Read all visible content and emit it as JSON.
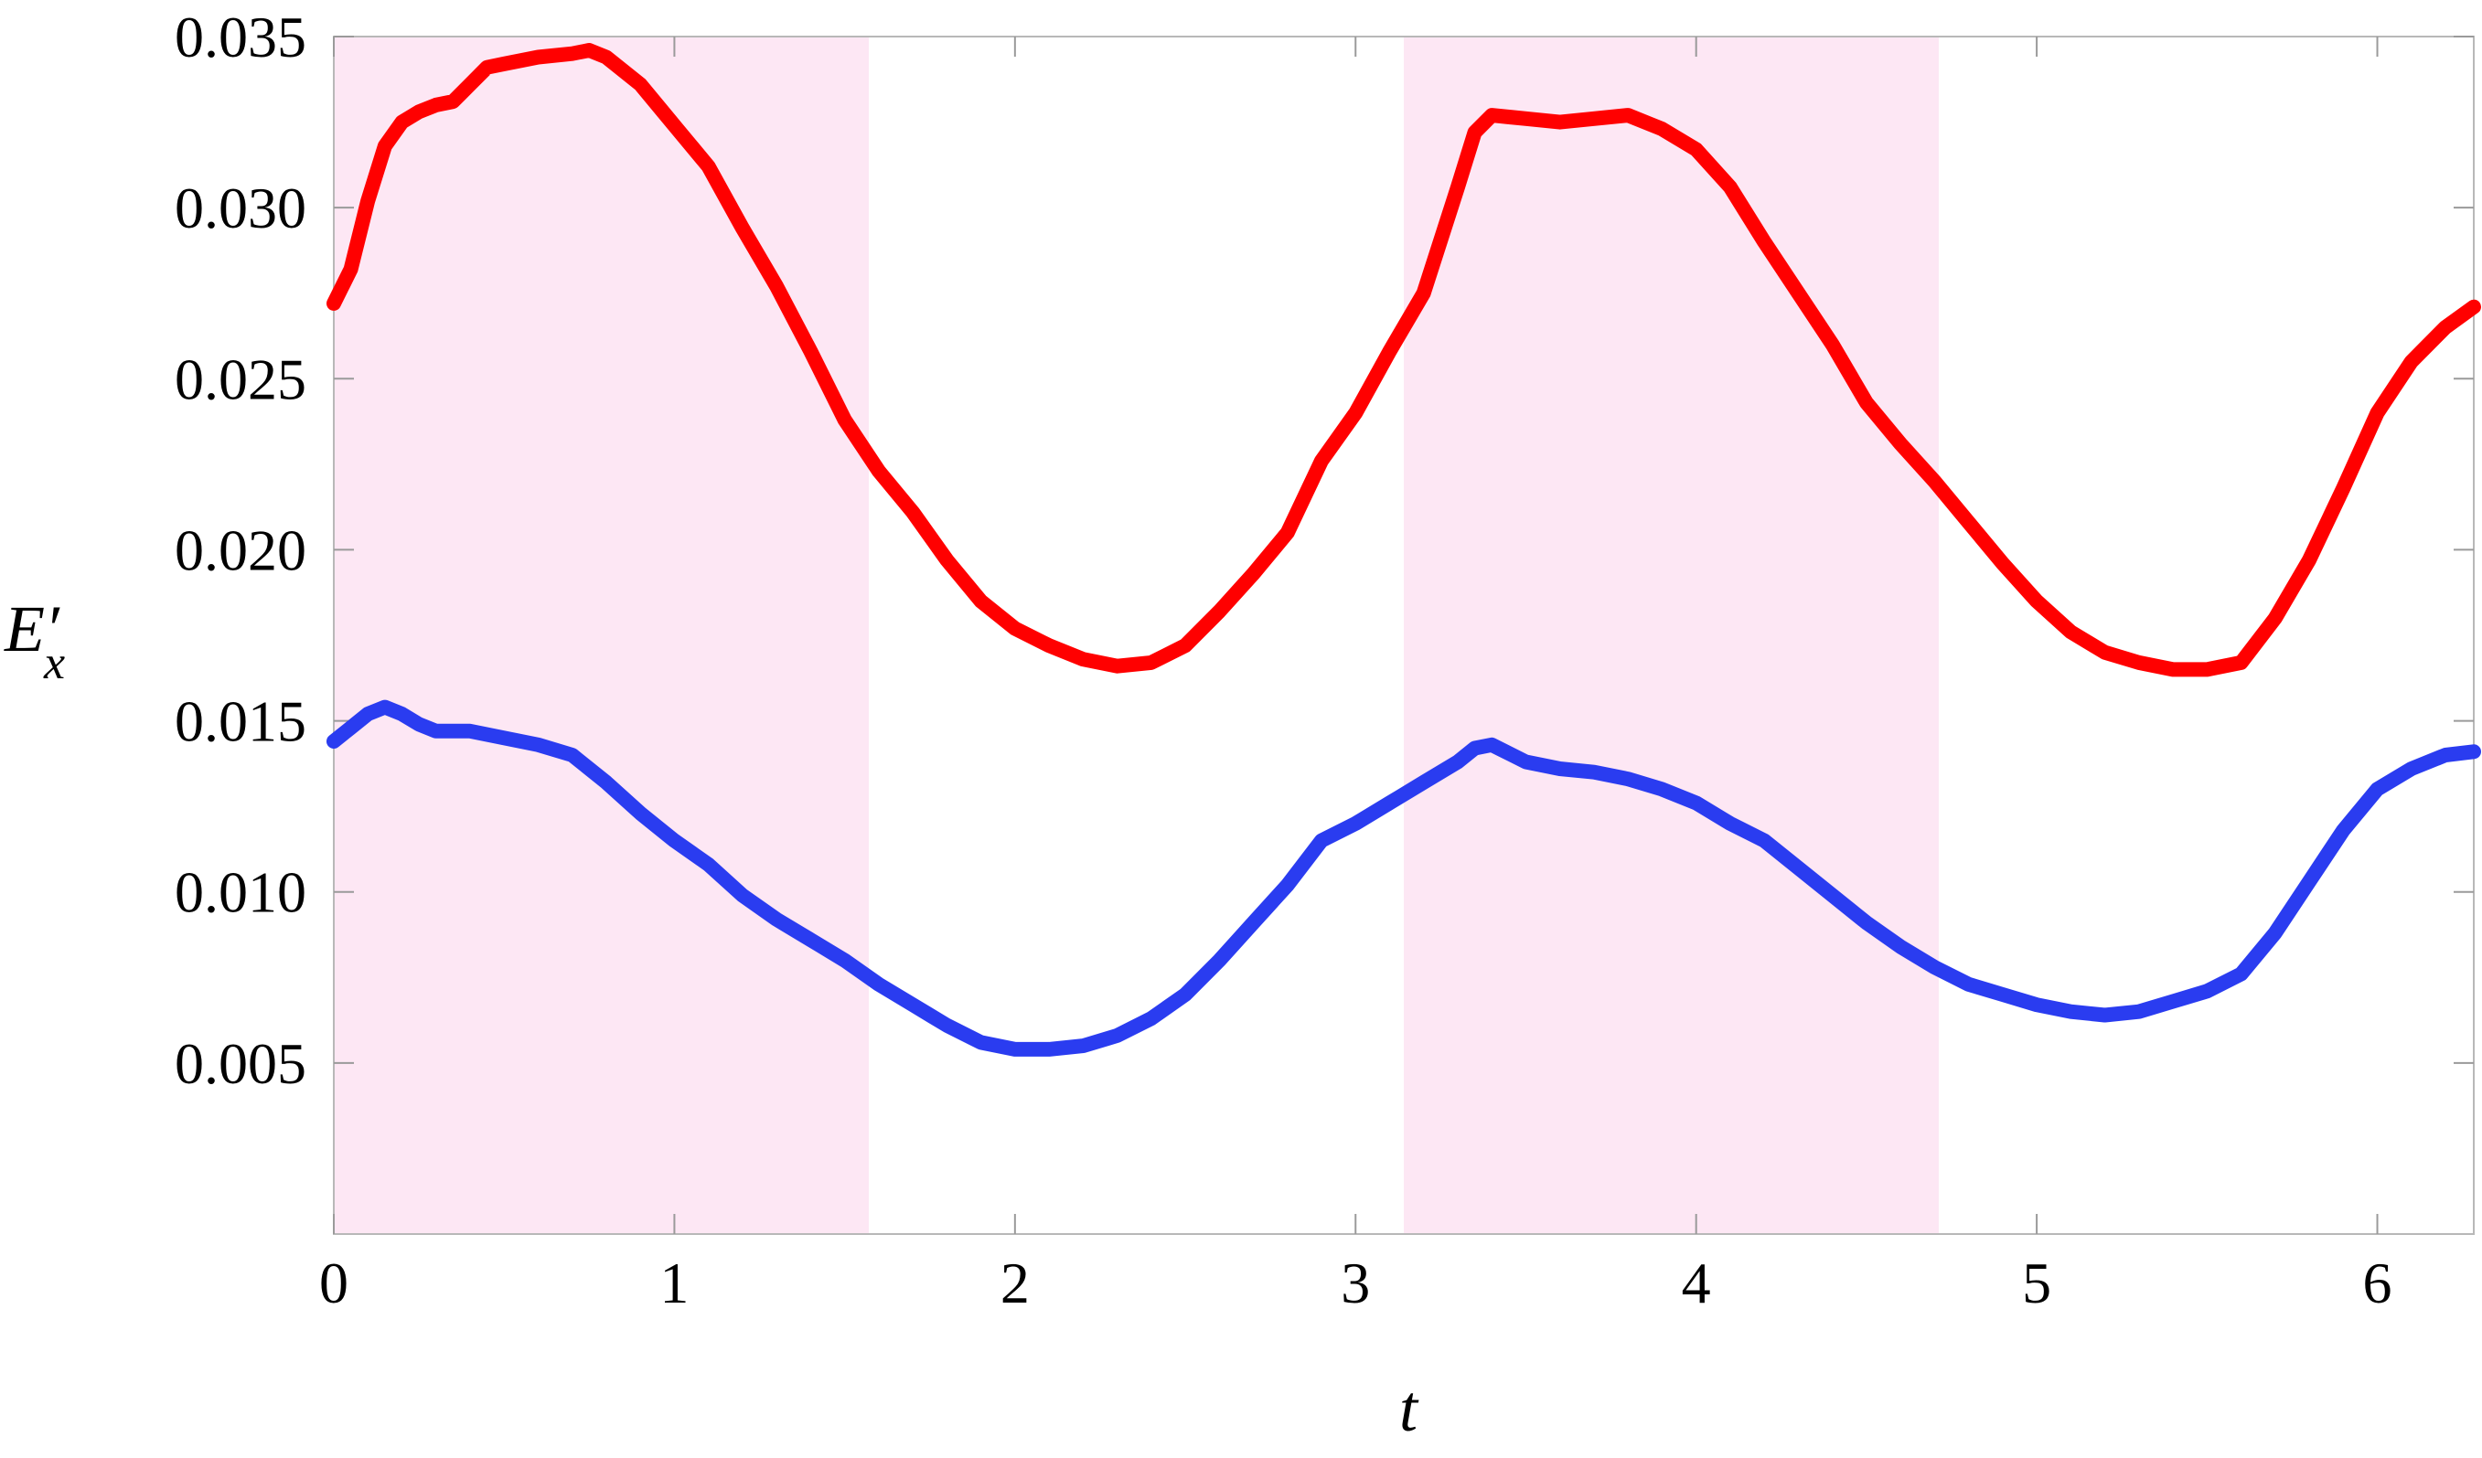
{
  "chart_data": {
    "type": "line",
    "title": "",
    "xlabel": "t",
    "ylabel": "E",
    "ylabel_prime": "′",
    "ylabel_sub": "x",
    "xlim": [
      0,
      6.2832
    ],
    "ylim": [
      0,
      0.035
    ],
    "xticks": [
      0,
      1,
      2,
      3,
      4,
      5,
      6
    ],
    "xtick_labels": [
      "0",
      "1",
      "2",
      "3",
      "4",
      "5",
      "6"
    ],
    "yticks": [
      0.005,
      0.01,
      0.015,
      0.02,
      0.025,
      0.03,
      0.035
    ],
    "ytick_labels": [
      "0.005",
      "0.010",
      "0.015",
      "0.020",
      "0.025",
      "0.030",
      "0.035"
    ],
    "grid": false,
    "legend": "none",
    "shaded_intervals": [
      {
        "from": 0,
        "to": 1.5708
      },
      {
        "from": 3.1416,
        "to": 4.7124
      }
    ],
    "shade_color": "#fde7f4",
    "series": [
      {
        "color": "#ff0000",
        "x": [
          0,
          0.05,
          0.1,
          0.15,
          0.2,
          0.25,
          0.3,
          0.35,
          0.4,
          0.45,
          0.5,
          0.6,
          0.7,
          0.75,
          0.8,
          0.9,
          1.0,
          1.1,
          1.2,
          1.3,
          1.4,
          1.5,
          1.6,
          1.7,
          1.8,
          1.9,
          2.0,
          2.1,
          2.2,
          2.3,
          2.4,
          2.5,
          2.6,
          2.7,
          2.8,
          2.9,
          3.0,
          3.1,
          3.2,
          3.3,
          3.35,
          3.4,
          3.5,
          3.6,
          3.7,
          3.8,
          3.9,
          4.0,
          4.1,
          4.2,
          4.3,
          4.4,
          4.5,
          4.6,
          4.7,
          4.8,
          4.9,
          5.0,
          5.1,
          5.2,
          5.3,
          5.4,
          5.5,
          5.6,
          5.7,
          5.8,
          5.9,
          6.0,
          6.1,
          6.2,
          6.2832
        ],
        "y": [
          0.0272,
          0.0282,
          0.0302,
          0.0318,
          0.0325,
          0.0328,
          0.033,
          0.0331,
          0.0336,
          0.0341,
          0.0342,
          0.0344,
          0.0345,
          0.0346,
          0.0344,
          0.0336,
          0.0324,
          0.0312,
          0.0294,
          0.0277,
          0.0258,
          0.0238,
          0.0223,
          0.0211,
          0.0197,
          0.0185,
          0.0177,
          0.0172,
          0.0168,
          0.0166,
          0.0167,
          0.0172,
          0.0182,
          0.0193,
          0.0205,
          0.0226,
          0.024,
          0.0258,
          0.0275,
          0.0306,
          0.0322,
          0.0327,
          0.0326,
          0.0325,
          0.0326,
          0.0327,
          0.0323,
          0.0317,
          0.0306,
          0.029,
          0.0275,
          0.026,
          0.0243,
          0.0231,
          0.022,
          0.0208,
          0.0196,
          0.0185,
          0.0176,
          0.017,
          0.0167,
          0.0165,
          0.0165,
          0.0167,
          0.018,
          0.0197,
          0.0218,
          0.024,
          0.0255,
          0.0265,
          0.0271
        ]
      },
      {
        "color": "#2a3cf0",
        "x": [
          0,
          0.05,
          0.1,
          0.15,
          0.2,
          0.25,
          0.3,
          0.4,
          0.5,
          0.6,
          0.7,
          0.8,
          0.9,
          1.0,
          1.1,
          1.2,
          1.3,
          1.4,
          1.5,
          1.6,
          1.7,
          1.8,
          1.9,
          2.0,
          2.1,
          2.2,
          2.3,
          2.4,
          2.5,
          2.6,
          2.7,
          2.8,
          2.9,
          3.0,
          3.1,
          3.2,
          3.3,
          3.35,
          3.4,
          3.5,
          3.6,
          3.7,
          3.8,
          3.9,
          4.0,
          4.1,
          4.2,
          4.3,
          4.4,
          4.5,
          4.6,
          4.7,
          4.8,
          4.9,
          5.0,
          5.1,
          5.2,
          5.3,
          5.4,
          5.5,
          5.6,
          5.7,
          5.8,
          5.9,
          6.0,
          6.1,
          6.2,
          6.2832
        ],
        "y": [
          0.0144,
          0.0148,
          0.0152,
          0.0154,
          0.0152,
          0.0149,
          0.0147,
          0.0147,
          0.0145,
          0.0143,
          0.014,
          0.0132,
          0.0123,
          0.0115,
          0.0108,
          0.0099,
          0.0092,
          0.0086,
          0.008,
          0.0073,
          0.0067,
          0.0061,
          0.0056,
          0.0054,
          0.0054,
          0.0055,
          0.0058,
          0.0063,
          0.007,
          0.008,
          0.0091,
          0.0102,
          0.0115,
          0.012,
          0.0126,
          0.0132,
          0.0138,
          0.0142,
          0.0143,
          0.0138,
          0.0136,
          0.0135,
          0.0133,
          0.013,
          0.0126,
          0.012,
          0.0115,
          0.0107,
          0.0099,
          0.0091,
          0.0084,
          0.0078,
          0.0073,
          0.007,
          0.0067,
          0.0065,
          0.0064,
          0.0065,
          0.0068,
          0.0071,
          0.0076,
          0.0088,
          0.0103,
          0.0118,
          0.013,
          0.0136,
          0.014,
          0.0141
        ]
      }
    ]
  }
}
